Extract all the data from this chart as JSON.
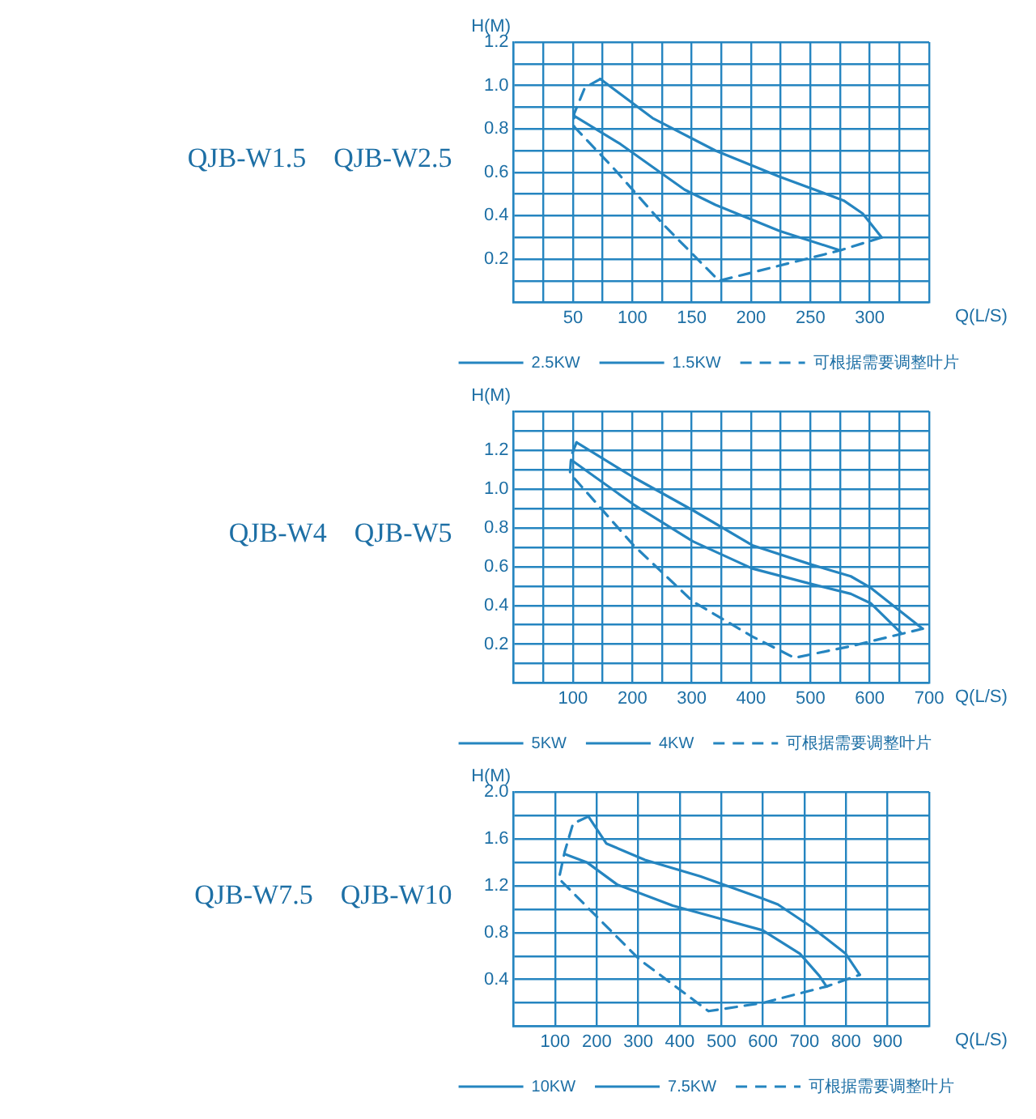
{
  "chart_data": [
    {
      "type": "line",
      "title": "QJB-W1.5　QJB-W2.5",
      "xlabel": "Q(L/S)",
      "ylabel": "H(M)",
      "xlim": [
        0,
        350
      ],
      "ylim": [
        0,
        1.2
      ],
      "xticks": [
        {
          "value": 0,
          "label": null
        },
        {
          "value": 25,
          "label": null
        },
        50,
        {
          "value": 75,
          "label": null
        },
        100,
        {
          "value": 125,
          "label": null
        },
        150,
        {
          "value": 175,
          "label": null
        },
        200,
        {
          "value": 225,
          "label": null
        },
        250,
        {
          "value": 275,
          "label": null
        },
        300,
        {
          "value": 325,
          "label": null
        },
        {
          "value": 350,
          "label": null
        }
      ],
      "yticks": [
        {
          "value": 0,
          "label": null
        },
        {
          "value": 0.1,
          "label": null
        },
        0.2,
        {
          "value": 0.3,
          "label": null
        },
        0.4,
        {
          "value": 0.5,
          "label": null
        },
        0.6,
        {
          "value": 0.7,
          "label": null
        },
        0.8,
        {
          "value": 0.9,
          "label": null
        },
        {
          "value": 1,
          "label": "1.0"
        },
        {
          "value": 1.1,
          "label": null
        },
        1.2
      ],
      "grid": true,
      "legend": "bottom",
      "marker": "none",
      "series": [
        {
          "name": "2.5KW",
          "color": "#2585c0",
          "line_style": "solid",
          "x": [
            73,
            117,
            170,
            224,
            278,
            294,
            310
          ],
          "values": [
            1.03,
            0.85,
            0.7,
            0.58,
            0.47,
            0.41,
            0.3
          ]
        },
        {
          "name": "1.5KW",
          "color": "#2585c0",
          "line_style": "solid",
          "x": [
            51,
            90,
            144,
            170,
            224,
            275
          ],
          "values": [
            0.86,
            0.73,
            0.52,
            0.45,
            0.33,
            0.24
          ]
        },
        {
          "name": "可根据需要调整叶片",
          "color": "#2585c0",
          "line_style": "dashed",
          "x": [
            73,
            60,
            51,
            51,
            84,
            126,
            173,
            275,
            310
          ],
          "values": [
            1.03,
            0.99,
            0.87,
            0.81,
            0.62,
            0.36,
            0.1,
            0.24,
            0.3
          ]
        }
      ]
    },
    {
      "type": "line",
      "title": "QJB-W4　QJB-W5",
      "xlabel": "Q(L/S)",
      "ylabel": "H(M)",
      "xlim": [
        0,
        700
      ],
      "ylim": [
        0,
        1.4
      ],
      "xticks": [
        {
          "value": 0,
          "label": null
        },
        {
          "value": 50,
          "label": null
        },
        100,
        {
          "value": 150,
          "label": null
        },
        200,
        {
          "value": 250,
          "label": null
        },
        300,
        {
          "value": 350,
          "label": null
        },
        400,
        {
          "value": 450,
          "label": null
        },
        500,
        {
          "value": 550,
          "label": null
        },
        600,
        {
          "value": 650,
          "label": null
        },
        700
      ],
      "yticks": [
        {
          "value": 0,
          "label": null
        },
        {
          "value": 0.1,
          "label": null
        },
        0.2,
        {
          "value": 0.3,
          "label": null
        },
        0.4,
        {
          "value": 0.5,
          "label": null
        },
        0.6,
        {
          "value": 0.7,
          "label": null
        },
        0.8,
        {
          "value": 0.9,
          "label": null
        },
        {
          "value": 1,
          "label": "1.0"
        },
        {
          "value": 1.1,
          "label": null
        },
        1.2,
        {
          "value": 1.3,
          "label": null
        },
        {
          "value": 1.4,
          "label": null
        }
      ],
      "grid": true,
      "legend": "bottom",
      "marker": "none",
      "series": [
        {
          "name": "5KW",
          "color": "#2585c0",
          "line_style": "solid",
          "x": [
            106,
            202,
            302,
            402,
            502,
            568,
            602,
            643,
            689
          ],
          "values": [
            1.24,
            1.06,
            0.89,
            0.71,
            0.61,
            0.55,
            0.49,
            0.39,
            0.28
          ]
        },
        {
          "name": "4KW",
          "color": "#2585c0",
          "line_style": "solid",
          "x": [
            97,
            202,
            302,
            402,
            502,
            568,
            602,
            652
          ],
          "values": [
            1.15,
            0.92,
            0.73,
            0.59,
            0.51,
            0.46,
            0.41,
            0.26
          ]
        },
        {
          "name": "可根据需要调整叶片",
          "color": "#2585c0",
          "line_style": "dashed",
          "x": [
            106,
            97,
            95,
            202,
            302,
            402,
            473,
            568,
            689
          ],
          "values": [
            1.24,
            1.17,
            1.08,
            0.71,
            0.42,
            0.24,
            0.13,
            0.19,
            0.28
          ]
        }
      ]
    },
    {
      "type": "line",
      "title": "QJB-W7.5　QJB-W10",
      "xlabel": "Q(L/S)",
      "ylabel": "H(M)",
      "xlim": [
        0,
        1000
      ],
      "ylim": [
        0,
        2
      ],
      "xticks": [
        {
          "value": 0,
          "label": null
        },
        100,
        200,
        300,
        400,
        500,
        600,
        700,
        800,
        900,
        {
          "value": 1000,
          "label": null
        }
      ],
      "yticks": [
        {
          "value": 0,
          "label": null
        },
        {
          "value": 0.2,
          "label": null
        },
        0.4,
        {
          "value": 0.6,
          "label": null
        },
        0.8,
        {
          "value": 1,
          "label": null
        },
        1.2,
        {
          "value": 1.4,
          "label": null
        },
        1.6,
        {
          "value": 1.8,
          "label": null
        },
        {
          "value": 2,
          "label": "2.0"
        }
      ],
      "grid": true,
      "legend": "bottom",
      "marker": "none",
      "series": [
        {
          "name": "10KW",
          "color": "#2585c0",
          "line_style": "solid",
          "x": [
            180,
            223,
            316,
            449,
            599,
            636,
            716,
            799,
            833
          ],
          "values": [
            1.79,
            1.56,
            1.42,
            1.28,
            1.09,
            1.04,
            0.85,
            0.62,
            0.44
          ]
        },
        {
          "name": "7.5KW",
          "color": "#2585c0",
          "line_style": "solid",
          "x": [
            123,
            176,
            249,
            383,
            516,
            599,
            689,
            736,
            753
          ],
          "values": [
            1.47,
            1.4,
            1.21,
            1.03,
            0.9,
            0.82,
            0.62,
            0.43,
            0.34
          ]
        },
        {
          "name": "可根据需要调整叶片",
          "color": "#2585c0",
          "line_style": "dashed",
          "x": [
            180,
            143,
            123,
            109,
            303,
            469,
            599,
            753,
            833
          ],
          "values": [
            1.79,
            1.73,
            1.49,
            1.26,
            0.57,
            0.13,
            0.2,
            0.34,
            0.44
          ]
        }
      ]
    }
  ]
}
